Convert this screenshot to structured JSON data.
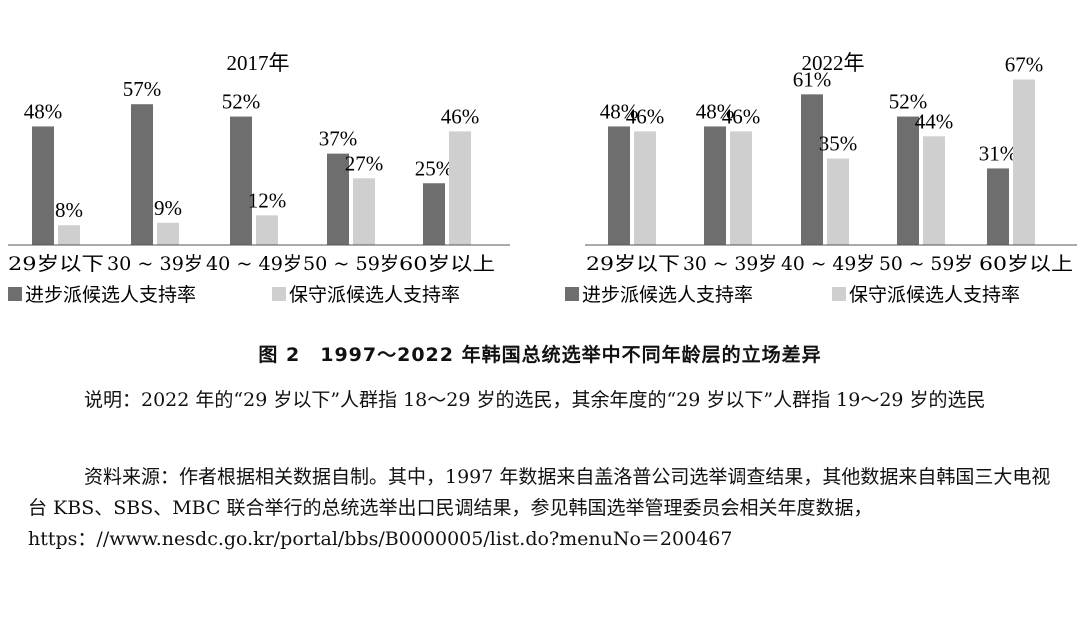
{
  "chart_data": [
    {
      "type": "bar",
      "title": "2017年",
      "categories": [
        "29岁以下",
        "30～39岁",
        "40～49岁",
        "50～59岁",
        "60岁以上"
      ],
      "tick_labels": [
        "29岁以下",
        "30 ~ 39岁",
        "40 ~ 49岁",
        "50 ~ 59岁",
        "60岁以上"
      ],
      "series": [
        {
          "name": "进步派候选人支持率",
          "values": [
            48,
            57,
            52,
            37,
            25
          ],
          "labels": [
            "48%",
            "57%",
            "52%",
            "37%",
            "25%"
          ],
          "color": "#6e6e6e"
        },
        {
          "name": "保守派候选人支持率",
          "values": [
            8,
            9,
            12,
            27,
            46
          ],
          "labels": [
            "8%",
            "9%",
            "12%",
            "27%",
            "46%"
          ],
          "color": "#cfcfcf"
        }
      ],
      "ylim": [
        0,
        70
      ],
      "legend": "bottom"
    },
    {
      "type": "bar",
      "title": "2022年",
      "categories": [
        "29岁以下",
        "30～39岁",
        "40～49岁",
        "50～59岁",
        "60岁以上"
      ],
      "tick_labels": [
        "29岁以下",
        "30 ~ 39岁",
        "40 ~ 49岁",
        "50 ~ 59岁",
        "60岁以上"
      ],
      "series": [
        {
          "name": "进步派候选人支持率",
          "values": [
            48,
            48,
            61,
            52,
            31
          ],
          "labels": [
            "48%",
            "48%",
            "61%",
            "52%",
            "31%"
          ],
          "color": "#6e6e6e"
        },
        {
          "name": "保守派候选人支持率",
          "values": [
            46,
            46,
            35,
            44,
            67
          ],
          "labels": [
            "46%",
            "46%",
            "35%",
            "44%",
            "67%"
          ],
          "color": "#cfcfcf"
        }
      ],
      "ylim": [
        0,
        70
      ],
      "legend": "bottom"
    }
  ],
  "figure": {
    "caption": "图 2　1997～2022 年韩国总统选举中不同年龄层的立场差异"
  },
  "notes": {
    "explanation": "说明：2022 年的“29 岁以下”人群指 18～29 岁的选民，其余年度的“29 岁以下”人群指 19～29 岁的选民",
    "source": "资料来源：作者根据相关数据自制。其中，1997 年数据来自盖洛普公司选举调查结果，其他数据来自韩国三大电视台 KBS、SBS、MBC 联合举行的总统选举出口民调结果，参见韩国选举管理委员会相关年度数据，https：//www.nesdc.go.kr/portal/bbs/B0000005/list.do?menuNo＝200467"
  }
}
